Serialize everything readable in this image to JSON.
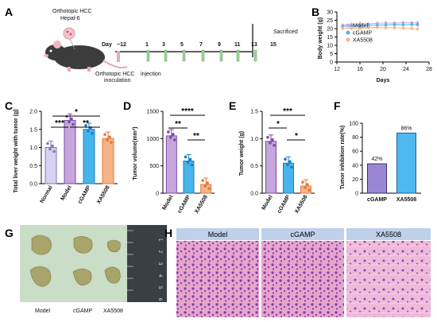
{
  "panel_letters": {
    "a": "A",
    "b": "B",
    "c": "C",
    "d": "D",
    "e": "E",
    "f": "F",
    "g": "G",
    "h": "H"
  },
  "schematic": {
    "model_label_1": "Orthotopic HCC",
    "model_label_2": "Hepal-6",
    "day_prefix": "Day",
    "days": [
      "−12",
      "1",
      "3",
      "5",
      "7",
      "9",
      "11",
      "13",
      "15"
    ],
    "sacrificed": "Sacrificed",
    "inoculation_1": "Orthotopic HCC",
    "inoculation_2": "inoculation",
    "injection": "injection"
  },
  "colors": {
    "model": "#c7a6dc",
    "model_dark": "#7a4aa8",
    "cgamp": "#48b4ec",
    "cgamp_dark": "#1d7fc0",
    "xa5508": "#f6b38a",
    "xa5508_dark": "#e07a3a",
    "normal": "#d7d2ef",
    "normal_dark": "#7d77b8"
  },
  "stats": {
    "c_star1": "*",
    "c_star2": "***",
    "c_star3": "**",
    "d_star1": "****",
    "d_star2": "**",
    "d_star3": "**",
    "e_star1": "***",
    "e_star2": "*",
    "e_star3": "*"
  },
  "photo_labels": [
    "Model",
    "cGAMP",
    "XA5508"
  ],
  "ruler_numbers": [
    "1",
    "2",
    "3",
    "4",
    "5",
    "6"
  ],
  "histology_labels": [
    "Model",
    "cGAMP",
    "XA5508"
  ],
  "chart_data": [
    {
      "panel": "B",
      "type": "line",
      "xlabel": "Days",
      "ylabel": "Body weight (g)",
      "x_ticks": [
        12,
        16,
        20,
        24,
        28
      ],
      "y_ticks": [
        0,
        5,
        10,
        15,
        20,
        25,
        30
      ],
      "xlim": [
        12,
        28
      ],
      "ylim": [
        0,
        30
      ],
      "x": [
        13,
        14.5,
        16,
        17.5,
        19,
        20.5,
        22,
        23.5,
        25,
        26
      ],
      "series": [
        {
          "name": "Model",
          "values": [
            22,
            22.5,
            23,
            22.8,
            23.2,
            23.4,
            23.3,
            23.6,
            23.5,
            23.4
          ]
        },
        {
          "name": "cGAMP",
          "values": [
            21.3,
            21.5,
            21.8,
            21.9,
            22.1,
            22.2,
            22.4,
            22.3,
            22.5,
            22.4
          ]
        },
        {
          "name": "XA5508",
          "values": [
            20.2,
            20.3,
            20.1,
            20.6,
            20.8,
            20.5,
            20.6,
            20.3,
            20.1,
            19.8
          ]
        }
      ]
    },
    {
      "panel": "C",
      "type": "bar",
      "ylabel": "Total liver weight with tumor (g)",
      "ylim": [
        0,
        2.0
      ],
      "y_ticks": [
        0.0,
        0.5,
        1.0,
        1.5,
        2.0
      ],
      "categories": [
        "Normal",
        "Model",
        "cGAMP",
        "XA5508"
      ],
      "values": [
        1.0,
        1.75,
        1.5,
        1.25
      ]
    },
    {
      "panel": "D",
      "type": "bar",
      "ylabel": "Tumor volume(mm³)",
      "ylim": [
        0,
        1500
      ],
      "y_ticks": [
        0,
        500,
        1000,
        1500
      ],
      "categories": [
        "Model",
        "cGAMP",
        "XA5508"
      ],
      "values": [
        1050,
        590,
        160
      ]
    },
    {
      "panel": "E",
      "type": "bar",
      "ylabel": "Tumor weight (g)",
      "ylim": [
        0,
        1.5
      ],
      "y_ticks": [
        0.0,
        0.5,
        1.0,
        1.5
      ],
      "categories": [
        "Model",
        "cGAMP",
        "XA5508"
      ],
      "values": [
        0.95,
        0.55,
        0.13
      ]
    },
    {
      "panel": "F",
      "type": "bar",
      "ylabel": "Tumor inhibition rate(%)",
      "ylim": [
        0,
        100
      ],
      "y_ticks": [
        0,
        20,
        40,
        60,
        80,
        100
      ],
      "categories": [
        "cGAMP",
        "XA5508"
      ],
      "values": [
        42,
        86
      ],
      "data_labels": [
        "42%",
        "86%"
      ]
    }
  ]
}
